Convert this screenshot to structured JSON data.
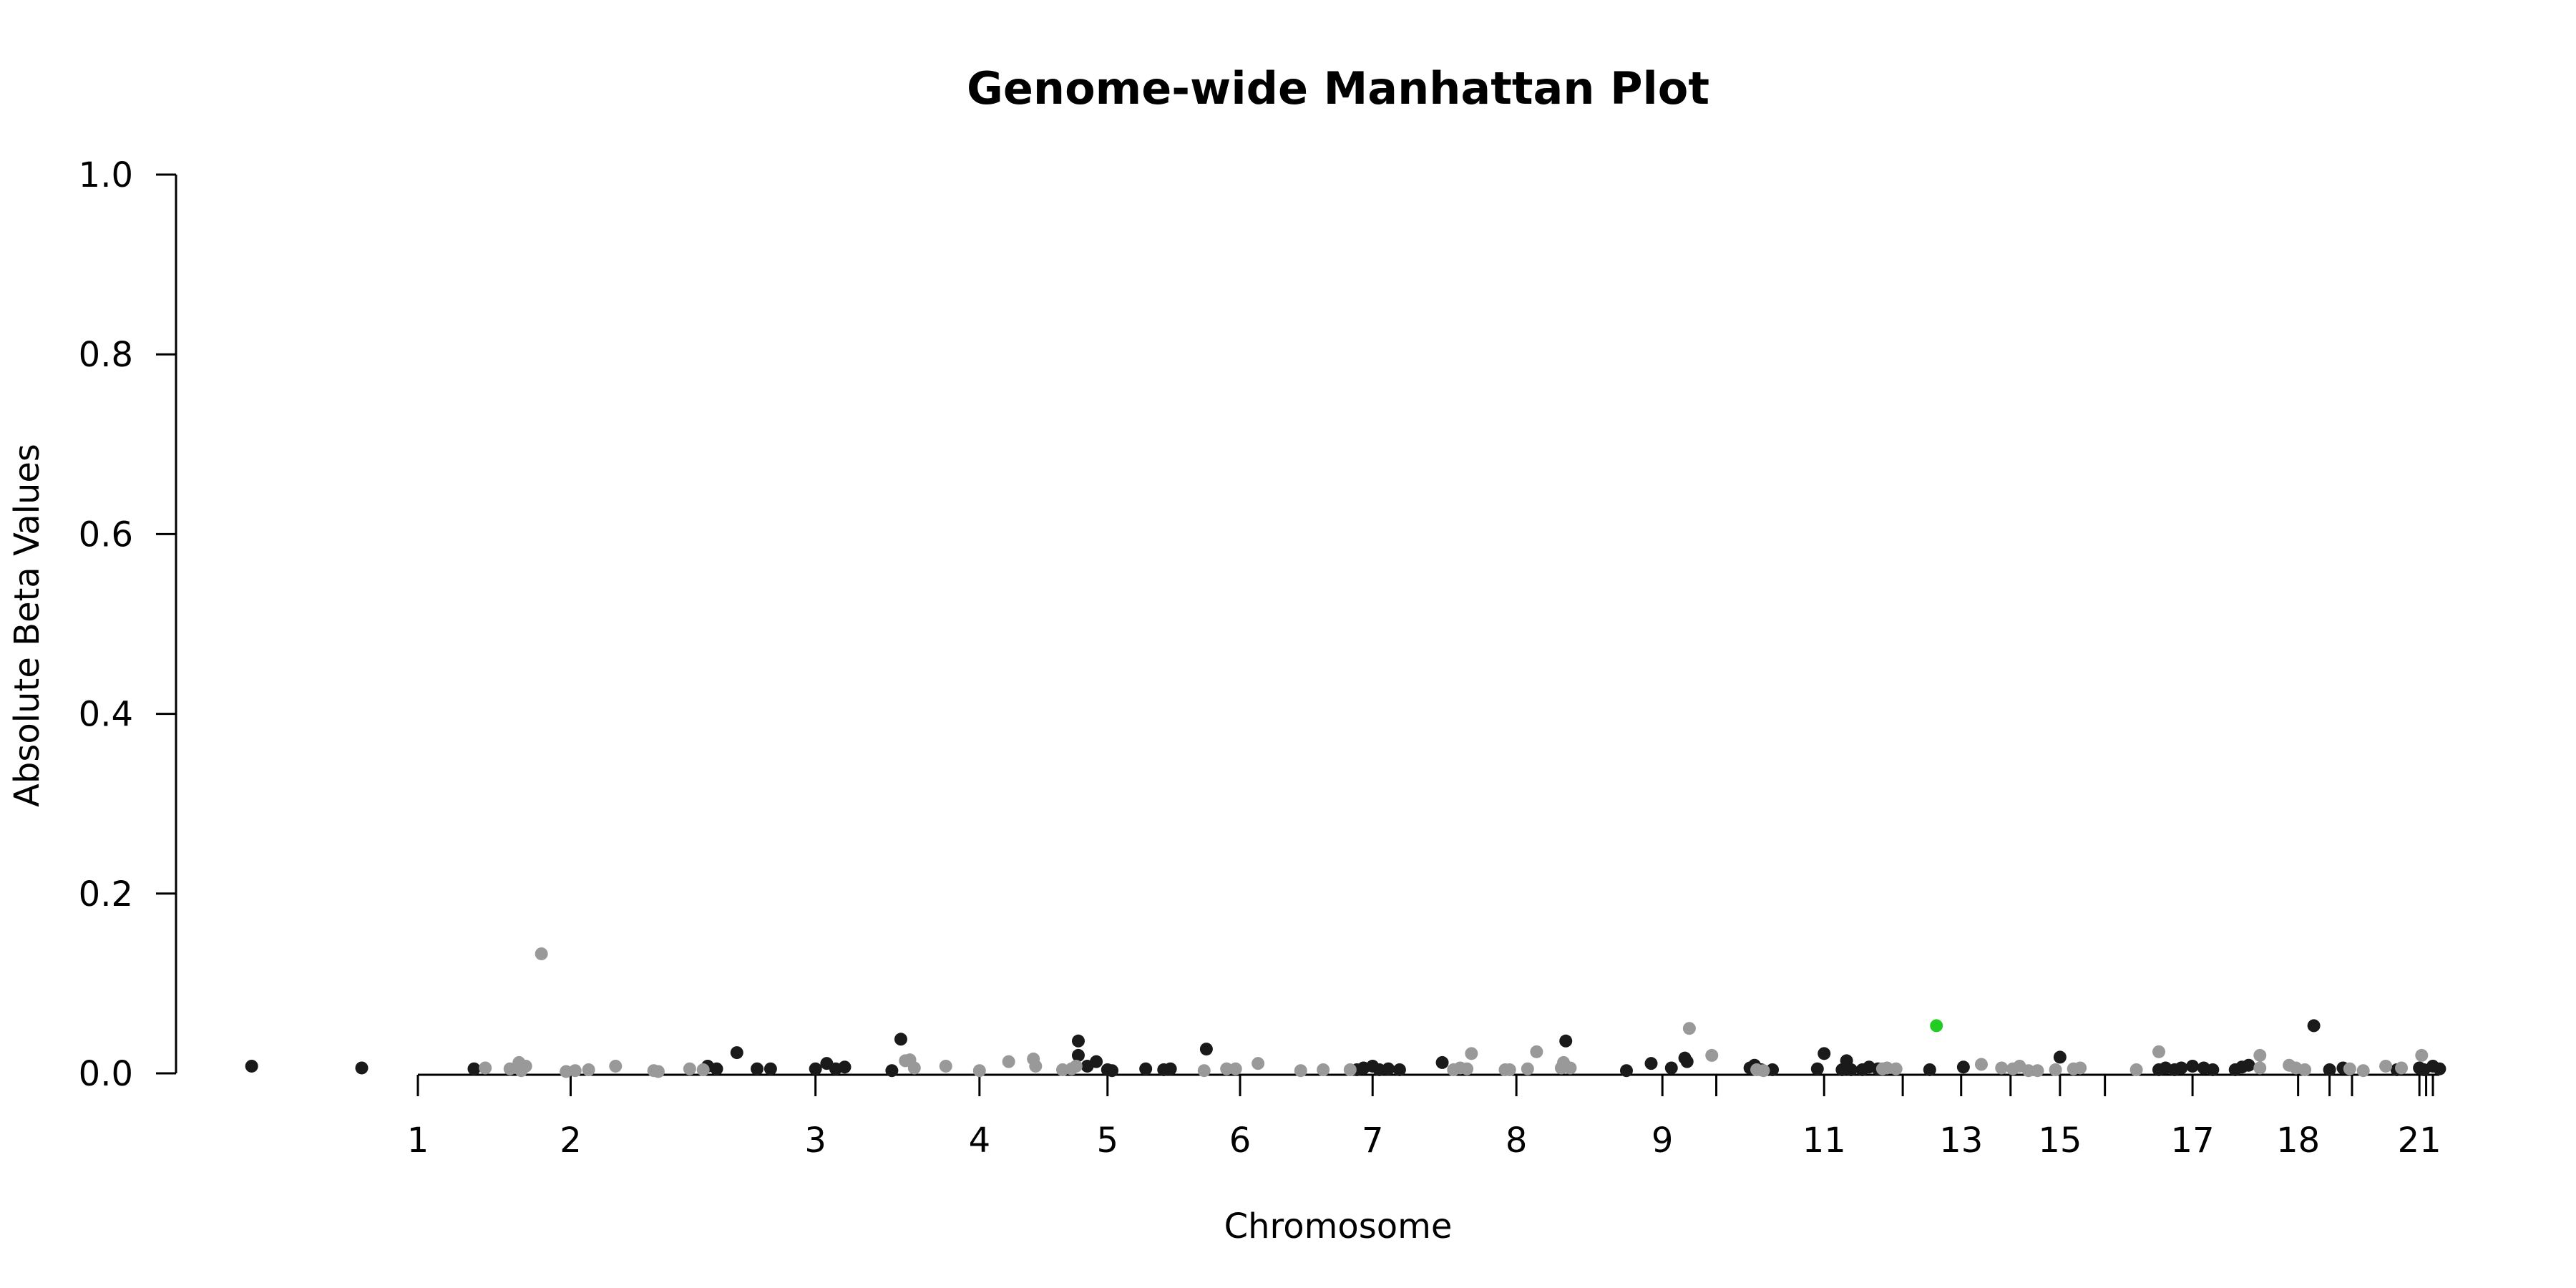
{
  "chart_data": {
    "type": "scatter",
    "title": "Genome-wide Manhattan Plot",
    "xlabel": "Chromosome",
    "ylabel": "Absolute Beta Values",
    "ylim": [
      0,
      1
    ],
    "yticks": [
      "0.0",
      "0.2",
      "0.4",
      "0.6",
      "0.8",
      "1.0"
    ],
    "xlim": [
      -85,
      1065
    ],
    "chromosome_ticks": [
      {
        "x": 0,
        "label": "1"
      },
      {
        "x": 68,
        "label": "2"
      },
      {
        "x": 177,
        "label": "3"
      },
      {
        "x": 250,
        "label": "4"
      },
      {
        "x": 307,
        "label": "5"
      },
      {
        "x": 366,
        "label": "6"
      },
      {
        "x": 425,
        "label": "7"
      },
      {
        "x": 489,
        "label": "8"
      },
      {
        "x": 554,
        "label": "9"
      },
      {
        "x": 578,
        "label": ""
      },
      {
        "x": 626,
        "label": "11"
      },
      {
        "x": 661,
        "label": ""
      },
      {
        "x": 687,
        "label": "13"
      },
      {
        "x": 709,
        "label": ""
      },
      {
        "x": 731,
        "label": "15"
      },
      {
        "x": 751,
        "label": ""
      },
      {
        "x": 790,
        "label": "17"
      },
      {
        "x": 837,
        "label": "18"
      },
      {
        "x": 851,
        "label": ""
      },
      {
        "x": 861,
        "label": ""
      },
      {
        "x": 891,
        "label": "21"
      },
      {
        "x": 894,
        "label": ""
      },
      {
        "x": 897,
        "label": ""
      }
    ],
    "colors": {
      "odd": "#1a1a1a",
      "even": "#999999",
      "highlight": "#22cc22"
    },
    "series": [
      {
        "color_key": "odd",
        "points": [
          [
            -74,
            0.008
          ],
          [
            -25,
            0.006
          ],
          [
            25,
            0.005
          ],
          [
            129,
            0.008
          ],
          [
            133,
            0.005
          ],
          [
            142,
            0.023
          ],
          [
            151,
            0.005
          ],
          [
            157,
            0.005
          ],
          [
            177,
            0.005
          ],
          [
            182,
            0.011
          ],
          [
            186,
            0.005
          ],
          [
            190,
            0.007
          ],
          [
            211,
            0.003
          ],
          [
            215,
            0.038
          ],
          [
            294,
            0.036
          ],
          [
            294,
            0.02
          ],
          [
            298,
            0.008
          ],
          [
            302,
            0.013
          ],
          [
            307,
            0.004
          ],
          [
            309,
            0.003
          ],
          [
            324,
            0.005
          ],
          [
            332,
            0.004
          ],
          [
            335,
            0.005
          ],
          [
            351,
            0.027
          ],
          [
            418,
            0.004
          ],
          [
            421,
            0.006
          ],
          [
            425,
            0.008
          ],
          [
            428,
            0.004
          ],
          [
            432,
            0.005
          ],
          [
            437,
            0.004
          ],
          [
            456,
            0.012
          ],
          [
            511,
            0.036
          ],
          [
            538,
            0.003
          ],
          [
            549,
            0.011
          ],
          [
            558,
            0.006
          ],
          [
            564,
            0.017
          ],
          [
            565,
            0.013
          ],
          [
            593,
            0.006
          ],
          [
            595,
            0.009
          ],
          [
            598,
            0.004
          ],
          [
            603,
            0.004
          ],
          [
            623,
            0.005
          ],
          [
            626,
            0.022
          ],
          [
            634,
            0.004
          ],
          [
            636,
            0.014
          ],
          [
            638,
            0.004
          ],
          [
            643,
            0.004
          ],
          [
            646,
            0.007
          ],
          [
            650,
            0.005
          ],
          [
            673,
            0.004
          ],
          [
            688,
            0.007
          ],
          [
            731,
            0.018
          ],
          [
            775,
            0.004
          ],
          [
            778,
            0.006
          ],
          [
            782,
            0.004
          ],
          [
            785,
            0.006
          ],
          [
            790,
            0.008
          ],
          [
            795,
            0.006
          ],
          [
            799,
            0.004
          ],
          [
            809,
            0.004
          ],
          [
            812,
            0.007
          ],
          [
            815,
            0.009
          ],
          [
            844,
            0.053
          ],
          [
            851,
            0.004
          ],
          [
            857,
            0.006
          ],
          [
            881,
            0.004
          ],
          [
            891,
            0.006
          ],
          [
            893,
            0.004
          ],
          [
            897,
            0.008
          ],
          [
            900,
            0.005
          ]
        ]
      },
      {
        "color_key": "even",
        "points": [
          [
            30,
            0.006
          ],
          [
            41,
            0.005
          ],
          [
            45,
            0.008
          ],
          [
            46,
            0.003
          ],
          [
            46,
            0.005
          ],
          [
            45,
            0.012
          ],
          [
            48,
            0.008
          ],
          [
            55,
            0.133
          ],
          [
            66,
            0.002
          ],
          [
            70,
            0.003
          ],
          [
            76,
            0.004
          ],
          [
            88,
            0.008
          ],
          [
            105,
            0.003
          ],
          [
            107,
            0.002
          ],
          [
            121,
            0.005
          ],
          [
            127,
            0.004
          ],
          [
            217,
            0.014
          ],
          [
            219,
            0.015
          ],
          [
            221,
            0.006
          ],
          [
            235,
            0.008
          ],
          [
            250,
            0.003
          ],
          [
            263,
            0.013
          ],
          [
            274,
            0.016
          ],
          [
            275,
            0.008
          ],
          [
            287,
            0.004
          ],
          [
            291,
            0.005
          ],
          [
            293,
            0.008
          ],
          [
            350,
            0.003
          ],
          [
            360,
            0.005
          ],
          [
            364,
            0.005
          ],
          [
            374,
            0.011
          ],
          [
            393,
            0.003
          ],
          [
            403,
            0.004
          ],
          [
            415,
            0.004
          ],
          [
            461,
            0.004
          ],
          [
            464,
            0.006
          ],
          [
            467,
            0.005
          ],
          [
            469,
            0.022
          ],
          [
            484,
            0.004
          ],
          [
            486,
            0.004
          ],
          [
            494,
            0.005
          ],
          [
            498,
            0.024
          ],
          [
            509,
            0.006
          ],
          [
            510,
            0.012
          ],
          [
            513,
            0.006
          ],
          [
            566,
            0.05
          ],
          [
            576,
            0.02
          ],
          [
            596,
            0.004
          ],
          [
            599,
            0.003
          ],
          [
            652,
            0.005
          ],
          [
            654,
            0.006
          ],
          [
            658,
            0.005
          ],
          [
            696,
            0.01
          ],
          [
            705,
            0.006
          ],
          [
            710,
            0.005
          ],
          [
            713,
            0.008
          ],
          [
            717,
            0.003
          ],
          [
            721,
            0.003
          ],
          [
            729,
            0.004
          ],
          [
            737,
            0.005
          ],
          [
            740,
            0.006
          ],
          [
            765,
            0.004
          ],
          [
            775,
            0.024
          ],
          [
            820,
            0.02
          ],
          [
            820,
            0.006
          ],
          [
            833,
            0.009
          ],
          [
            836,
            0.006
          ],
          [
            840,
            0.004
          ],
          [
            860,
            0.005
          ],
          [
            866,
            0.003
          ],
          [
            876,
            0.008
          ],
          [
            883,
            0.006
          ],
          [
            892,
            0.02
          ]
        ]
      },
      {
        "color_key": "highlight",
        "points": [
          [
            676,
            0.053
          ]
        ]
      }
    ]
  }
}
